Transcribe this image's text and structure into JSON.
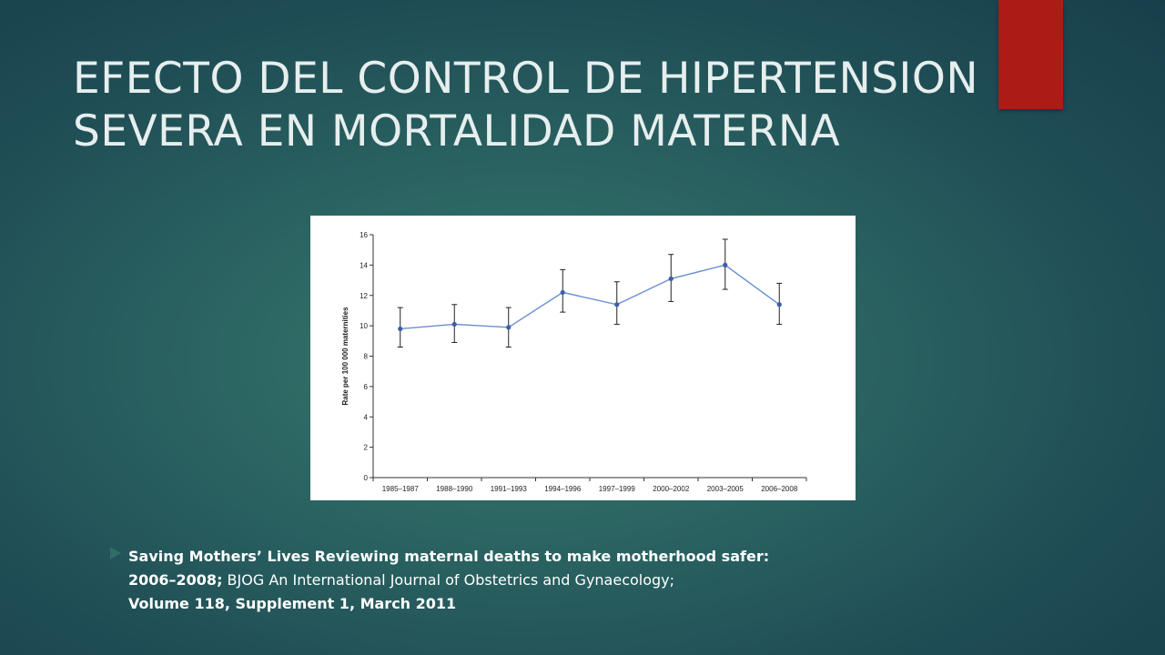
{
  "slide": {
    "title_line1": "EFECTO DEL CONTROL DE HIPERTENSION",
    "title_line2": "SEVERA EN MORTALIDAD MATERNA"
  },
  "citation": {
    "line1": "Saving Mothers’ Lives Reviewing maternal deaths to make motherhood safer:",
    "line2_bold": "2006–2008;",
    "line2_rest": " BJOG An International Journal of Obstetrics and Gynaecology;",
    "line3": "Volume 118, Supplement 1, March 2011"
  },
  "colors": {
    "accent": "#ad1b16",
    "series": "#6a8fd0",
    "marker": "#3a5fa8"
  },
  "chart_data": {
    "type": "line",
    "title": "",
    "xlabel": "",
    "ylabel": "Rate per 100 000 maternities",
    "categories": [
      "1985–1987",
      "1988–1990",
      "1991–1993",
      "1994–1996",
      "1997–1999",
      "2000–2002",
      "2003–2005",
      "2006–2008"
    ],
    "series": [
      {
        "values": [
          9.8,
          10.1,
          9.9,
          12.2,
          11.4,
          13.1,
          14.0,
          11.4
        ],
        "lower": [
          8.6,
          8.9,
          8.6,
          10.9,
          10.1,
          11.6,
          12.4,
          10.1
        ],
        "upper": [
          11.2,
          11.4,
          11.2,
          13.7,
          12.9,
          14.7,
          15.7,
          12.8
        ]
      }
    ],
    "ylim": [
      0,
      16
    ],
    "yticks": [
      "0",
      "2",
      "4",
      "6",
      "8",
      "10",
      "12",
      "14",
      "16"
    ],
    "grid": false,
    "legend": "none"
  }
}
